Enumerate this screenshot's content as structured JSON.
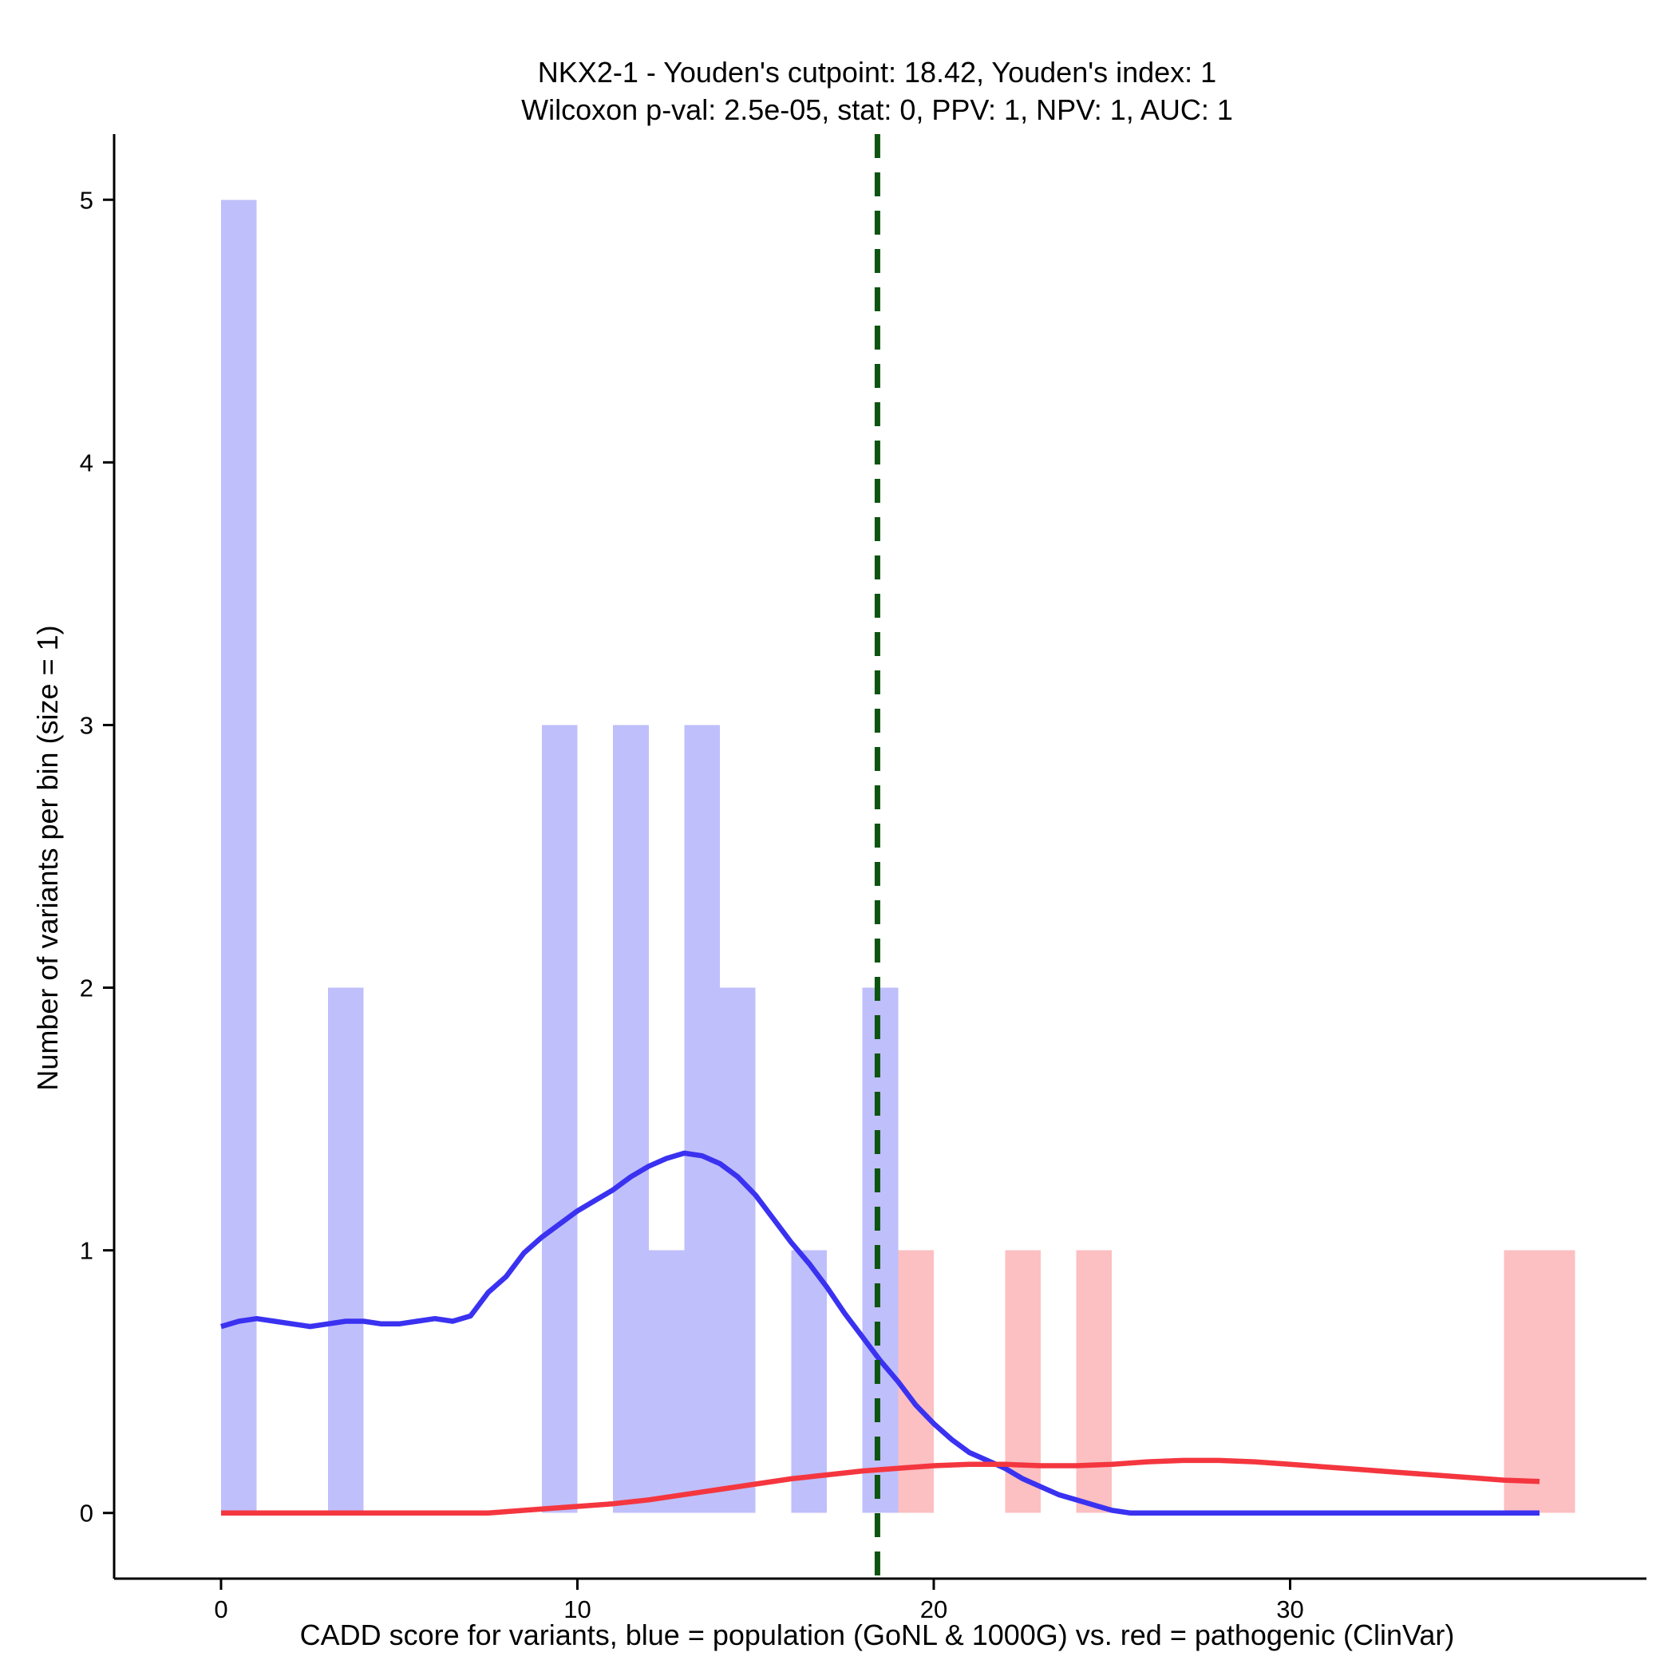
{
  "chart_data": {
    "type": "bar",
    "title": "NKX2-1 - Youden's cutpoint: 18.42, Youden's index: 1",
    "subtitle": "Wilcoxon p-val: 2.5e-05, stat: 0, PPV: 1, NPV: 1, AUC: 1",
    "xlabel": "CADD score for variants, blue = population (GoNL & 1000G) vs. red = pathogenic (ClinVar)",
    "ylabel": "Number of variants per bin (size = 1)",
    "xlim": [
      -3,
      40
    ],
    "ylim": [
      -0.25,
      5.25
    ],
    "xticks": [
      0,
      10,
      20,
      30
    ],
    "yticks": [
      0,
      1,
      2,
      3,
      4,
      5
    ],
    "grid": false,
    "bin_width": 1,
    "cutpoint": 18.42,
    "colors": {
      "population_bars": "#bfbffb",
      "pathogenic_bars": "#fcbfc2",
      "population_line": "#3a32f0",
      "pathogenic_line": "#f4363f",
      "cutpoint_line": "#0d5410"
    },
    "histograms": [
      {
        "group": "population",
        "bins": [
          {
            "x0": 0,
            "x1": 1,
            "count": 5
          },
          {
            "x0": 3,
            "x1": 4,
            "count": 2
          },
          {
            "x0": 9,
            "x1": 10,
            "count": 3
          },
          {
            "x0": 11,
            "x1": 12,
            "count": 3
          },
          {
            "x0": 12,
            "x1": 13,
            "count": 1
          },
          {
            "x0": 13,
            "x1": 14,
            "count": 3
          },
          {
            "x0": 14,
            "x1": 15,
            "count": 2
          },
          {
            "x0": 16,
            "x1": 17,
            "count": 1
          },
          {
            "x0": 18,
            "x1": 19,
            "count": 2
          }
        ]
      },
      {
        "group": "pathogenic",
        "bins": [
          {
            "x0": 19,
            "x1": 20,
            "count": 1
          },
          {
            "x0": 22,
            "x1": 23,
            "count": 1
          },
          {
            "x0": 24,
            "x1": 25,
            "count": 1
          },
          {
            "x0": 36,
            "x1": 37,
            "count": 1
          },
          {
            "x0": 37,
            "x1": 38,
            "count": 1
          }
        ]
      }
    ],
    "density_curves": [
      {
        "group": "population",
        "x": [
          0,
          0.5,
          1,
          1.5,
          2,
          2.5,
          3,
          3.5,
          4,
          4.5,
          5,
          5.5,
          6,
          6.5,
          7,
          7.5,
          8,
          8.5,
          9,
          9.5,
          10,
          10.5,
          11,
          11.5,
          12,
          12.5,
          13,
          13.5,
          14,
          14.5,
          15,
          15.5,
          16,
          16.5,
          17,
          17.5,
          18,
          18.5,
          19,
          19.5,
          20,
          20.5,
          21,
          21.5,
          22,
          22.5,
          23,
          23.5,
          24,
          24.5,
          25,
          25.5,
          26,
          28,
          30,
          32,
          34,
          36,
          37
        ],
        "y": [
          0.71,
          0.73,
          0.74,
          0.73,
          0.72,
          0.71,
          0.72,
          0.73,
          0.73,
          0.72,
          0.72,
          0.73,
          0.74,
          0.73,
          0.75,
          0.84,
          0.9,
          0.99,
          1.05,
          1.1,
          1.15,
          1.19,
          1.23,
          1.28,
          1.32,
          1.35,
          1.37,
          1.36,
          1.33,
          1.28,
          1.21,
          1.12,
          1.03,
          0.95,
          0.86,
          0.76,
          0.67,
          0.58,
          0.5,
          0.41,
          0.34,
          0.28,
          0.23,
          0.2,
          0.17,
          0.13,
          0.1,
          0.07,
          0.05,
          0.03,
          0.01,
          0,
          0,
          0,
          0,
          0,
          0,
          0,
          0
        ]
      },
      {
        "group": "pathogenic",
        "x": [
          0,
          2,
          4,
          6,
          7,
          7.5,
          8,
          9,
          10,
          11,
          12,
          13,
          14,
          15,
          16,
          17,
          18,
          19,
          20,
          21,
          22,
          23,
          24,
          25,
          26,
          27,
          28,
          29,
          30,
          31,
          32,
          33,
          34,
          35,
          36,
          37
        ],
        "y": [
          0,
          0,
          0,
          0,
          0,
          0,
          0.005,
          0.015,
          0.025,
          0.035,
          0.05,
          0.07,
          0.09,
          0.11,
          0.13,
          0.145,
          0.16,
          0.17,
          0.18,
          0.185,
          0.185,
          0.18,
          0.18,
          0.185,
          0.195,
          0.2,
          0.2,
          0.195,
          0.185,
          0.175,
          0.165,
          0.155,
          0.145,
          0.135,
          0.125,
          0.12
        ]
      }
    ]
  }
}
